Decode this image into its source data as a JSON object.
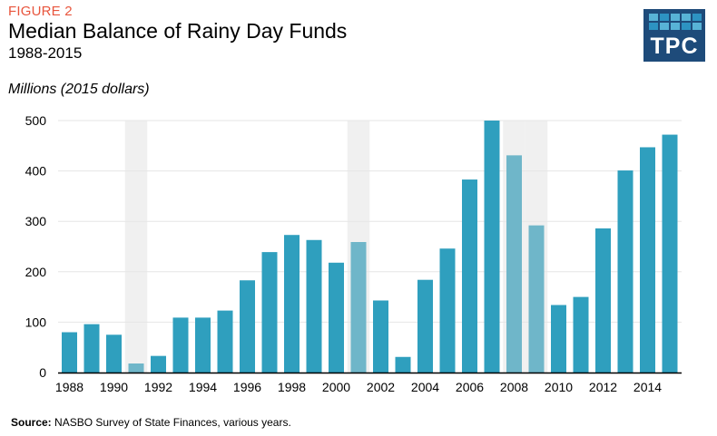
{
  "header": {
    "figure_label": "FIGURE 2",
    "title": "Median Balance of Rainy Day Funds",
    "subtitle": "1988-2015",
    "units": "Millions (2015 dollars)"
  },
  "logo": {
    "text": "TPC",
    "color": "#1e4b7a"
  },
  "footer": {
    "source_label": "Source:",
    "source_text": " NASBO Survey  of State Finances, various  years."
  },
  "colors": {
    "bar": "#2f9fbe",
    "bar_recession": "#6fb6c9",
    "recession_band": "#f0f0f0",
    "gridline": "#e6e6e6",
    "axis": "#000000"
  },
  "chart_data": {
    "type": "bar",
    "title": "Median Balance of Rainy Day Funds",
    "subtitle": "1988-2015",
    "xlabel": "",
    "ylabel": "Millions (2015 dollars)",
    "ylim": [
      0,
      500
    ],
    "yticks": [
      0,
      100,
      200,
      300,
      400,
      500
    ],
    "grid": true,
    "legend": "none",
    "categories": [
      1988,
      1989,
      1990,
      1991,
      1992,
      1993,
      1994,
      1995,
      1996,
      1997,
      1998,
      1999,
      2000,
      2001,
      2002,
      2003,
      2004,
      2005,
      2006,
      2007,
      2008,
      2009,
      2010,
      2011,
      2012,
      2013,
      2014,
      2015
    ],
    "xtick_labels": [
      "1988",
      "1990",
      "1992",
      "1994",
      "1996",
      "1998",
      "2000",
      "2002",
      "2004",
      "2006",
      "2008",
      "2010",
      "2012",
      "2014"
    ],
    "values": [
      80,
      96,
      75,
      18,
      33,
      109,
      109,
      123,
      183,
      239,
      273,
      263,
      218,
      259,
      143,
      31,
      184,
      246,
      383,
      500,
      431,
      292,
      134,
      150,
      286,
      401,
      447,
      472
    ],
    "recession_years": [
      1991,
      2001,
      2008,
      2009
    ],
    "source": "NASBO Survey of State Finances, various years."
  }
}
